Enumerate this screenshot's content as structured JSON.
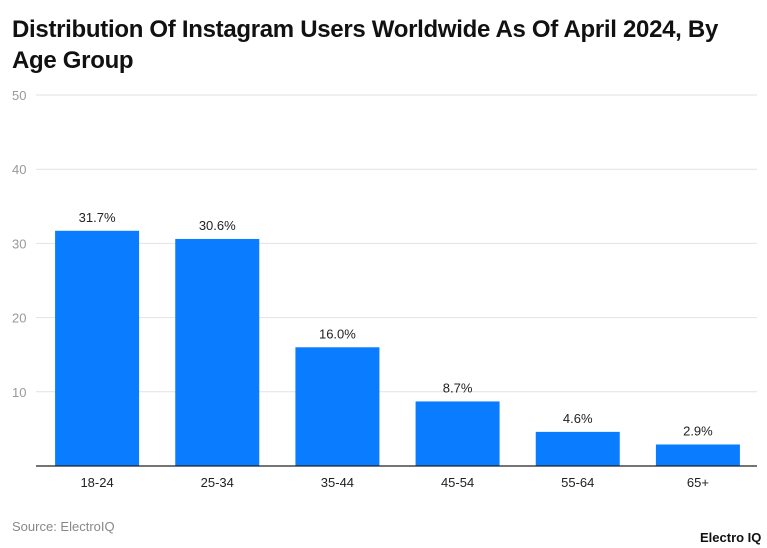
{
  "chart_data": {
    "type": "bar",
    "title": "Distribution Of Instagram Users Worldwide As Of April 2024, By Age Group",
    "categories": [
      "18-24",
      "25-34",
      "35-44",
      "45-54",
      "55-64",
      "65+"
    ],
    "values": [
      31.7,
      30.6,
      16.0,
      8.7,
      4.6,
      2.9
    ],
    "data_labels": [
      "31.7%",
      "30.6%",
      "16.0%",
      "8.7%",
      "4.6%",
      "2.9%"
    ],
    "yticks": [
      10,
      20,
      30,
      40,
      50
    ],
    "ylim": [
      0,
      50
    ],
    "grid": true,
    "bar_color": "#0a7cff",
    "xlabel": "",
    "ylabel": ""
  },
  "source": "Source: ElectroIQ",
  "logo": "Electro IQ"
}
